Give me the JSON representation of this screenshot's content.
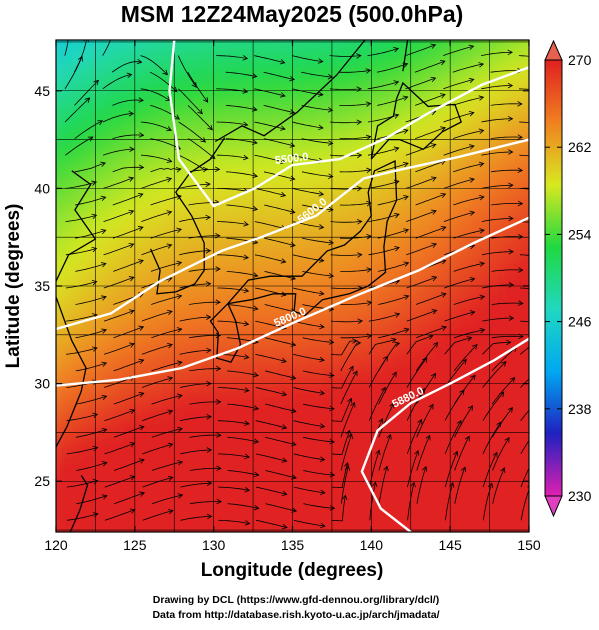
{
  "chart_data": {
    "type": "heatmap",
    "title": "MSM 12Z24May2025 (500.0hPa)",
    "xlabel": "Longitude (degrees)",
    "ylabel": "Latitude  (degrees)",
    "xlim": [
      120,
      150
    ],
    "ylim": [
      22.4,
      47.6
    ],
    "x_ticks": [
      "120",
      "125",
      "130",
      "135",
      "140",
      "145",
      "150"
    ],
    "y_ticks": [
      "25",
      "30",
      "35",
      "40",
      "45"
    ],
    "x_tick_values": [
      120,
      125,
      130,
      135,
      140,
      145,
      150
    ],
    "y_tick_values": [
      25,
      30,
      35,
      40,
      45
    ],
    "grid": true,
    "colorbar": {
      "min": 230,
      "max": 270,
      "tick_labels": [
        "230",
        "238",
        "246",
        "254",
        "262",
        "270"
      ],
      "tick_values": [
        230,
        238,
        246,
        254,
        262,
        270
      ],
      "colors": [
        "#e020b0",
        "#2020c0",
        "#00a8f0",
        "#20d8c0",
        "#20d840",
        "#d8e820",
        "#f08020",
        "#e02020"
      ],
      "placement": "right"
    },
    "contours": [
      {
        "label": "5500.0",
        "points": [
          [
            127.5,
            47.6
          ],
          [
            127.2,
            45
          ],
          [
            127.8,
            41.5
          ],
          [
            130,
            39.1
          ],
          [
            132.6,
            40
          ],
          [
            135,
            41.2
          ],
          [
            138,
            41.5
          ],
          [
            141,
            42.6
          ],
          [
            143.5,
            43.8
          ],
          [
            147,
            45.3
          ],
          [
            150,
            46.2
          ]
        ]
      },
      {
        "label": "5600.0",
        "points": [
          [
            120,
            32.8
          ],
          [
            123.5,
            33.6
          ],
          [
            126.5,
            35.2
          ],
          [
            130.5,
            36.8
          ],
          [
            133,
            37.5
          ],
          [
            136.5,
            38.6
          ],
          [
            139.5,
            40.5
          ],
          [
            141.5,
            40.9
          ],
          [
            145.5,
            41.6
          ],
          [
            150,
            42.5
          ]
        ]
      },
      {
        "label": "5800.0",
        "points": [
          [
            120,
            29.9
          ],
          [
            124,
            30.2
          ],
          [
            128,
            30.8
          ],
          [
            131.5,
            31.8
          ],
          [
            135,
            33.1
          ],
          [
            139,
            34.5
          ],
          [
            143,
            35.8
          ],
          [
            146.5,
            37.2
          ],
          [
            150,
            38.5
          ]
        ]
      },
      {
        "label": "5880.0",
        "points": [
          [
            142.5,
            22.4
          ],
          [
            140.6,
            23.6
          ],
          [
            139.4,
            25.5
          ],
          [
            140.4,
            27.6
          ],
          [
            142.5,
            29
          ],
          [
            145,
            30
          ],
          [
            147.8,
            31.2
          ],
          [
            150,
            32.3
          ]
        ]
      }
    ],
    "field_note": "500hPa temperature colour shading with wind streamlines and geopotential height contours"
  },
  "credits": {
    "line1": "Drawing by DCL (https://www.gfd-dennou.org/library/dcl/)",
    "line2": "Data from http://database.rish.kyoto-u.ac.jp/arch/jmadata/"
  },
  "colors": {
    "frame": "#000000",
    "contour": "#ffffff",
    "streamline": "#000000",
    "coast": "#000000"
  }
}
